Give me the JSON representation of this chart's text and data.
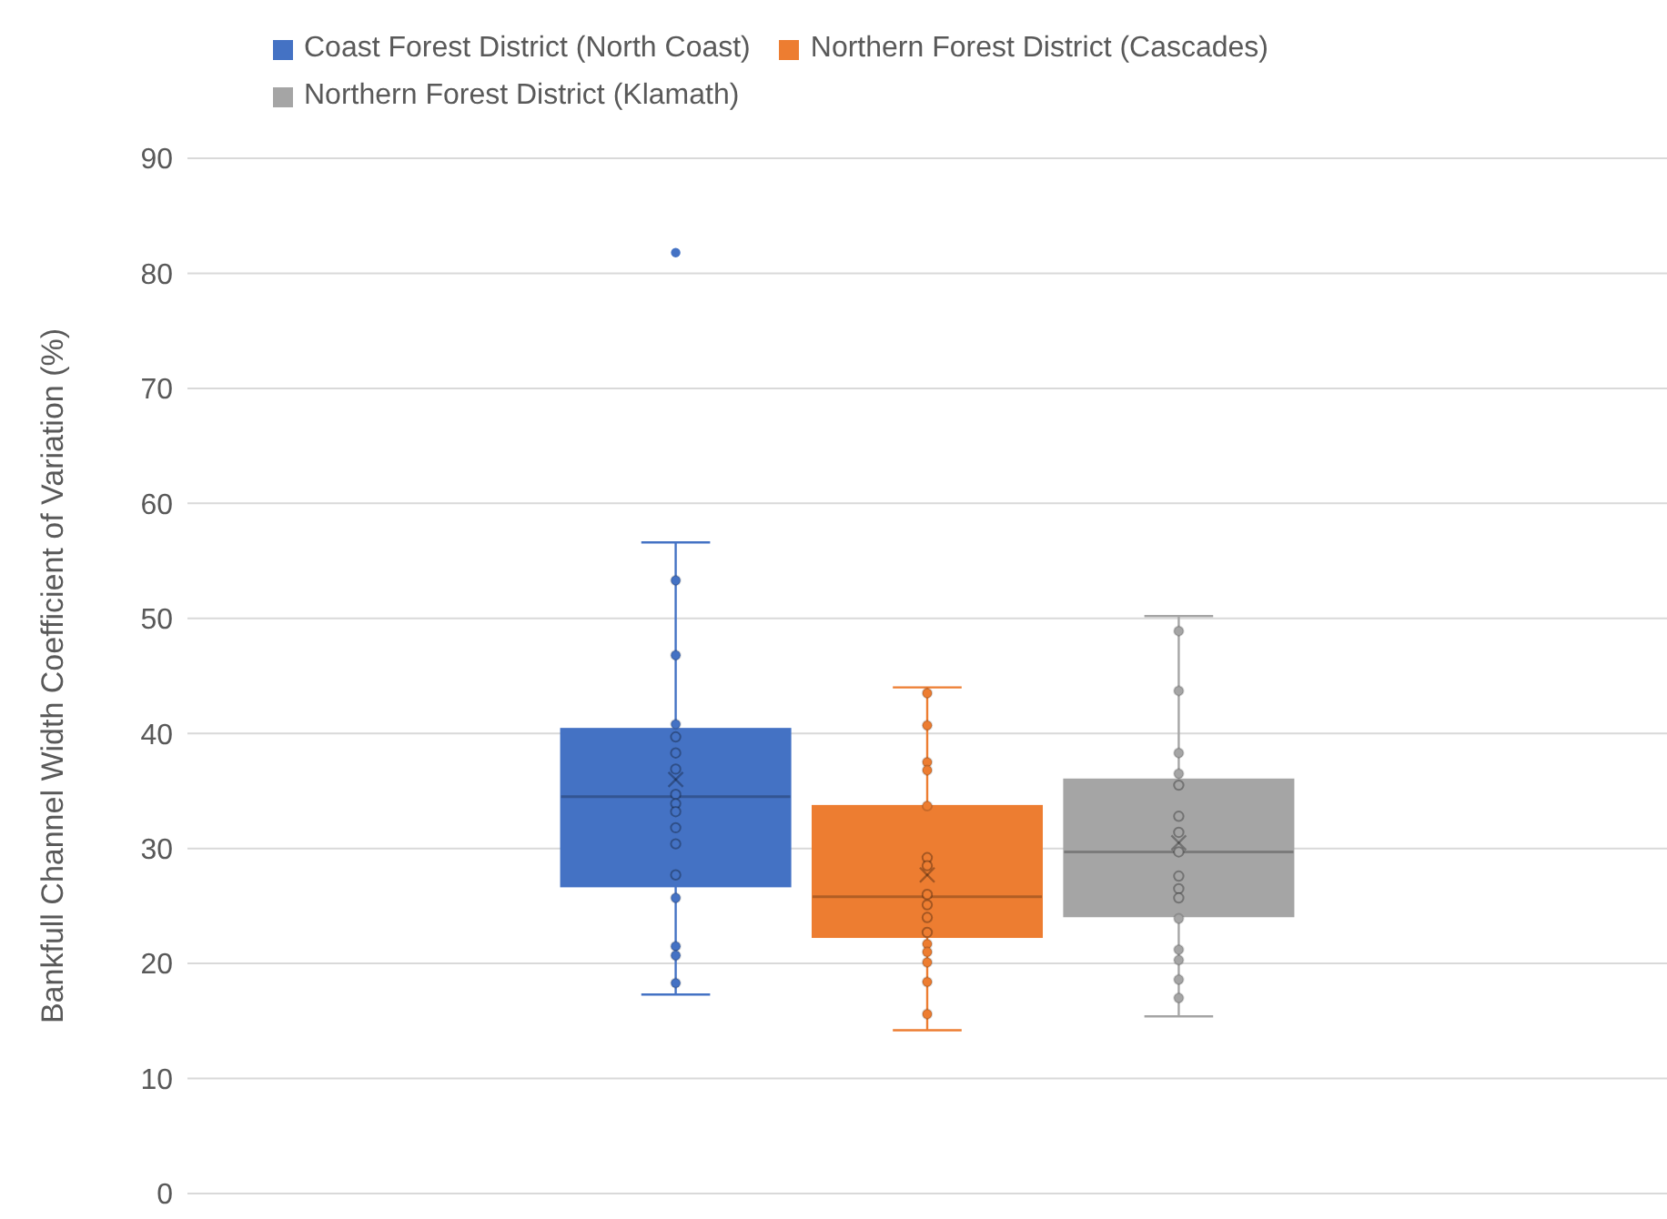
{
  "chart_data": {
    "type": "box",
    "ylabel": "Bankfull Channel Width Coefficient of Variation (%)",
    "categories": [
      null
    ],
    "ylim": [
      0,
      90
    ],
    "yticks": [
      0,
      10,
      20,
      30,
      40,
      50,
      60,
      70,
      80,
      90
    ],
    "grid": "y",
    "legend": "top",
    "series": [
      {
        "name": "Coast Forest District (North Coast)",
        "color": "#4472c4",
        "boxes": [
          {
            "low": 17.3,
            "q1": 26.7,
            "median": 34.5,
            "q3": 40.4,
            "high": 56.6,
            "mean": 36.0,
            "outliers": [
              81.8
            ]
          }
        ]
      },
      {
        "name": "Northern Forest District (Cascades)",
        "color": "#ed7d31",
        "boxes": [
          {
            "low": 14.2,
            "q1": 22.3,
            "median": 25.8,
            "q3": 33.7,
            "high": 44.0,
            "mean": 27.7
          }
        ]
      },
      {
        "name": "Northern Forest District (Klamath)",
        "color": "#a5a5a5",
        "boxes": [
          {
            "low": 15.4,
            "q1": 24.1,
            "median": 29.7,
            "q3": 36.0,
            "high": 50.2,
            "mean": 30.5
          }
        ]
      },
      {
        "type": "scatter",
        "color": "#4472c4",
        "x": [
          null,
          null,
          null,
          null,
          null,
          null,
          null,
          null,
          null,
          null,
          null,
          null,
          null,
          null,
          null,
          null
        ],
        "values": [
          53.3,
          46.8,
          40.8,
          39.7,
          38.3,
          36.9,
          34.7,
          33.9,
          33.2,
          31.8,
          30.4,
          27.7,
          25.7,
          21.5,
          20.7,
          18.3
        ]
      },
      {
        "type": "scatter",
        "color": "#ed7d31",
        "x": [
          null,
          null,
          null,
          null,
          null,
          null,
          null,
          null,
          null,
          null,
          null,
          null,
          null,
          null,
          null,
          null
        ],
        "values": [
          43.5,
          40.7,
          37.5,
          36.8,
          33.7,
          29.2,
          28.5,
          26.0,
          25.1,
          24.0,
          22.7,
          21.7,
          21.0,
          20.1,
          18.4,
          15.6
        ]
      },
      {
        "type": "scatter",
        "color": "#a5a5a5",
        "x": [
          null,
          null,
          null,
          null,
          null,
          null,
          null,
          null,
          null,
          null,
          null,
          null,
          null,
          null,
          null,
          null
        ],
        "values": [
          48.9,
          43.7,
          38.3,
          36.5,
          35.5,
          32.8,
          31.4,
          29.7,
          27.6,
          26.5,
          25.7,
          23.9,
          21.2,
          20.3,
          18.6,
          17.0
        ]
      }
    ]
  }
}
